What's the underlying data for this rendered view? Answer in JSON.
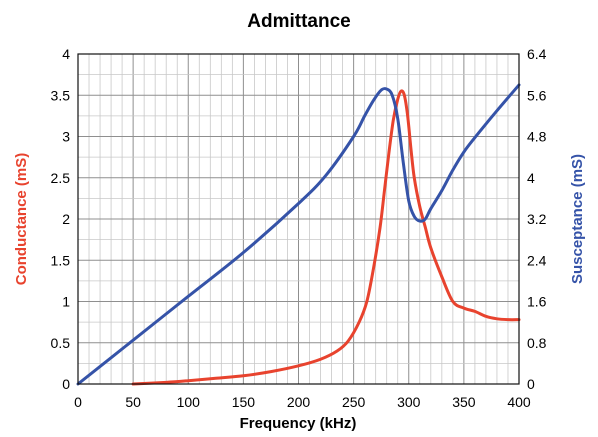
{
  "chart_data": {
    "type": "line",
    "title": "Admittance",
    "xlabel": "Frequency (kHz)",
    "ylabel": "Conductance (mS)",
    "y2label": "Susceptance (mS)",
    "xlim": [
      0,
      400
    ],
    "ylim": [
      0,
      4
    ],
    "y2lim": [
      0,
      6.4
    ],
    "xticks": [
      "0",
      "50",
      "100",
      "150",
      "200",
      "250",
      "300",
      "350",
      "400"
    ],
    "yticks": [
      "0",
      "0.5",
      "1",
      "1.5",
      "2",
      "2.5",
      "3",
      "3.5",
      "4"
    ],
    "y2ticks": [
      "0",
      "0.8",
      "1.6",
      "2.4",
      "3.2",
      "4",
      "4.8",
      "5.6",
      "6.4"
    ],
    "grid": true,
    "series": [
      {
        "name": "Conductance (mS)",
        "axis": "left",
        "color": "#e8432e",
        "x": [
          50,
          80,
          100,
          125,
          150,
          175,
          200,
          220,
          235,
          245,
          255,
          262,
          268,
          274,
          278,
          282,
          286,
          290,
          293,
          296,
          299,
          302,
          305,
          310,
          315,
          320,
          330,
          340,
          350,
          360,
          370,
          380,
          390,
          400
        ],
        "y": [
          0.0,
          0.02,
          0.04,
          0.07,
          0.1,
          0.15,
          0.22,
          0.3,
          0.4,
          0.52,
          0.75,
          1.0,
          1.4,
          1.9,
          2.35,
          2.8,
          3.2,
          3.45,
          3.55,
          3.5,
          3.25,
          2.85,
          2.5,
          2.15,
          1.9,
          1.65,
          1.3,
          1.0,
          0.92,
          0.88,
          0.82,
          0.79,
          0.78,
          0.78
        ]
      },
      {
        "name": "Susceptance (mS)",
        "axis": "right",
        "color": "#3553a8",
        "x": [
          0,
          50,
          100,
          150,
          200,
          225,
          250,
          260,
          268,
          275,
          280,
          285,
          290,
          295,
          300,
          305,
          310,
          315,
          320,
          330,
          340,
          350,
          360,
          380,
          400
        ],
        "y": [
          0.0,
          0.85,
          1.7,
          2.55,
          3.5,
          4.05,
          4.8,
          5.2,
          5.5,
          5.7,
          5.72,
          5.6,
          5.15,
          4.3,
          3.55,
          3.25,
          3.16,
          3.2,
          3.4,
          3.75,
          4.15,
          4.5,
          4.78,
          5.3,
          5.8
        ]
      }
    ]
  }
}
